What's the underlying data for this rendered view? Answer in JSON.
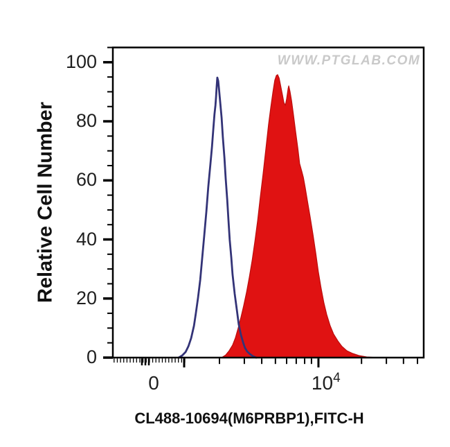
{
  "figure": {
    "watermark": "WWW.PTGLAB.COM",
    "y_axis_title": "Relative Cell Number",
    "x_axis_title": "CL488-10694(M6PRBP1),FITC-H"
  },
  "chart_data": {
    "type": "area",
    "subtype": "flow-cytometry-overlay-histogram",
    "title": "",
    "xlabel": "CL488-10694(M6PRBP1),FITC-H",
    "ylabel": "Relative Cell Number",
    "watermark": "WWW.PTGLAB.COM",
    "grid": false,
    "legend": false,
    "x_axis": {
      "scale": "logicle",
      "zero_label": "0",
      "pow_base": "10",
      "pow_exp": "4",
      "tick_labels": [
        "0",
        "10^4"
      ]
    },
    "y_axis": {
      "ticks": [
        "0",
        "20",
        "40",
        "60",
        "80",
        "100"
      ],
      "tick_values": [
        0,
        20,
        40,
        60,
        80,
        100
      ],
      "minor_step": 5,
      "ylim": [
        0,
        105
      ]
    },
    "x_ticks": {
      "dense_region": {
        "start": 0.004,
        "end": 0.2316,
        "count": 23
      },
      "medium": [
        0.0935,
        0.1047,
        0.1158
      ],
      "major": [
        0.2294,
        0.6614
      ],
      "minor": [
        0.343,
        0.423,
        0.479,
        0.523,
        0.559,
        0.59,
        0.617,
        0.639,
        0.8,
        0.88,
        0.935,
        0.98
      ],
      "zero_label_frac": 0.1314,
      "pow_label_frac": 0.639
    },
    "series": [
      {
        "name": "red-filled-histogram",
        "style": "filled",
        "fill_color": "#e01212",
        "line_color": "#bb0d0d",
        "peak_value": 96,
        "secondary_peak_value": 92,
        "peak_x_approx": "5e3",
        "points": [
          [
            0.35,
            0
          ],
          [
            0.363,
            0.9
          ],
          [
            0.374,
            2.3
          ],
          [
            0.385,
            4.2
          ],
          [
            0.394,
            6.6
          ],
          [
            0.403,
            9.9
          ],
          [
            0.412,
            13.6
          ],
          [
            0.421,
            17.6
          ],
          [
            0.43,
            22.1
          ],
          [
            0.439,
            27.2
          ],
          [
            0.448,
            32.9
          ],
          [
            0.457,
            39.4
          ],
          [
            0.466,
            46.5
          ],
          [
            0.474,
            54.0
          ],
          [
            0.483,
            62.0
          ],
          [
            0.492,
            70.4
          ],
          [
            0.501,
            78.9
          ],
          [
            0.508,
            84.7
          ],
          [
            0.515,
            89.9
          ],
          [
            0.521,
            93.9
          ],
          [
            0.526,
            95.5
          ],
          [
            0.53,
            95.8
          ],
          [
            0.535,
            94.6
          ],
          [
            0.539,
            92.5
          ],
          [
            0.546,
            88.7
          ],
          [
            0.55,
            86.4
          ],
          [
            0.555,
            85.4
          ],
          [
            0.559,
            87.6
          ],
          [
            0.564,
            91.1
          ],
          [
            0.566,
            92.0
          ],
          [
            0.57,
            90.1
          ],
          [
            0.575,
            86.9
          ],
          [
            0.581,
            82.2
          ],
          [
            0.588,
            76.5
          ],
          [
            0.595,
            70.9
          ],
          [
            0.601,
            65.7
          ],
          [
            0.608,
            63.0
          ],
          [
            0.613,
            61.0
          ],
          [
            0.619,
            57.5
          ],
          [
            0.626,
            53.0
          ],
          [
            0.635,
            47.5
          ],
          [
            0.644,
            41.5
          ],
          [
            0.653,
            35.2
          ],
          [
            0.661,
            29.1
          ],
          [
            0.67,
            23.5
          ],
          [
            0.679,
            18.5
          ],
          [
            0.688,
            14.6
          ],
          [
            0.699,
            10.8
          ],
          [
            0.71,
            8.0
          ],
          [
            0.724,
            5.6
          ],
          [
            0.737,
            3.8
          ],
          [
            0.753,
            2.3
          ],
          [
            0.771,
            1.4
          ],
          [
            0.791,
            0.7
          ],
          [
            0.817,
            0.2
          ],
          [
            0.851,
            0
          ]
        ]
      },
      {
        "name": "blue-open-histogram",
        "style": "open",
        "line_color": "#333377",
        "peak_value": 95,
        "peak_x_approx": "2e3",
        "points": [
          [
            0.212,
            0
          ],
          [
            0.223,
            0.7
          ],
          [
            0.234,
            1.9
          ],
          [
            0.243,
            3.8
          ],
          [
            0.252,
            6.6
          ],
          [
            0.261,
            10.8
          ],
          [
            0.267,
            15.0
          ],
          [
            0.274,
            20.2
          ],
          [
            0.281,
            26.3
          ],
          [
            0.287,
            33.3
          ],
          [
            0.294,
            41.3
          ],
          [
            0.301,
            49.5
          ],
          [
            0.307,
            57.7
          ],
          [
            0.314,
            65.7
          ],
          [
            0.319,
            71.4
          ],
          [
            0.323,
            77.0
          ],
          [
            0.327,
            82.4
          ],
          [
            0.33,
            85.4
          ],
          [
            0.332,
            88.3
          ],
          [
            0.334,
            91.8
          ],
          [
            0.336,
            94.8
          ],
          [
            0.339,
            93.7
          ],
          [
            0.341,
            91.5
          ],
          [
            0.345,
            86.9
          ],
          [
            0.35,
            81.2
          ],
          [
            0.354,
            74.6
          ],
          [
            0.359,
            67.6
          ],
          [
            0.363,
            60.6
          ],
          [
            0.368,
            53.5
          ],
          [
            0.372,
            46.5
          ],
          [
            0.376,
            39.9
          ],
          [
            0.381,
            33.8
          ],
          [
            0.385,
            28.2
          ],
          [
            0.392,
            21.6
          ],
          [
            0.399,
            16.0
          ],
          [
            0.405,
            11.3
          ],
          [
            0.412,
            7.7
          ],
          [
            0.419,
            5.2
          ],
          [
            0.425,
            3.3
          ],
          [
            0.432,
            2.1
          ],
          [
            0.441,
            1.2
          ],
          [
            0.45,
            0.5
          ],
          [
            0.461,
            0
          ]
        ]
      }
    ]
  }
}
